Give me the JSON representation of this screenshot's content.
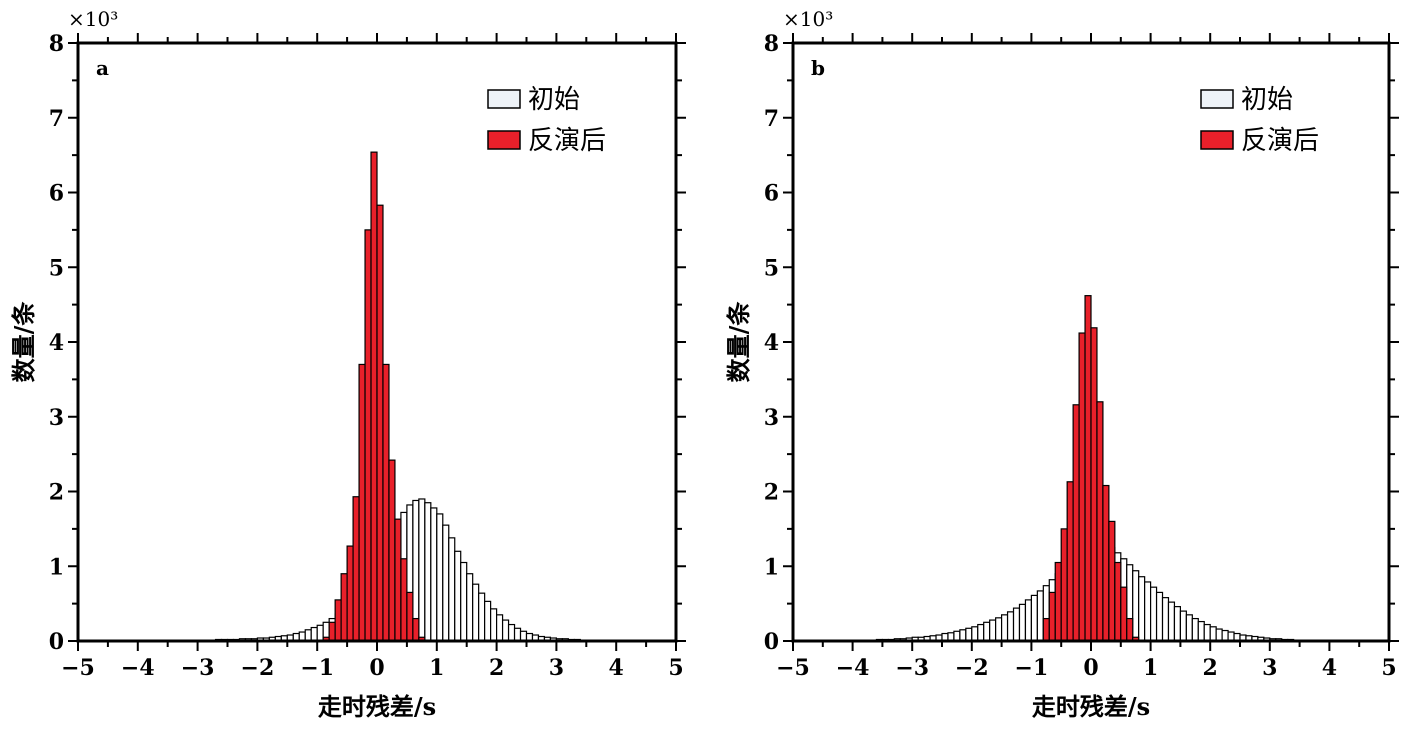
{
  "chart_data": [
    {
      "type": "bar",
      "panel_label": "a",
      "multiplier_label": "×10³",
      "xlabel": "走时残差/s",
      "ylabel": "数量/条",
      "xlim": [
        -5,
        5
      ],
      "ylim": [
        0,
        8
      ],
      "x_ticks": [
        "−5",
        "−4",
        "−3",
        "−2",
        "−1",
        "0",
        "1",
        "2",
        "3",
        "4",
        "5"
      ],
      "y_ticks": [
        "0",
        "1",
        "2",
        "3",
        "4",
        "5",
        "6",
        "7",
        "8"
      ],
      "bin_width": 0.1,
      "bin_start": -5,
      "legend_position": "top-right",
      "series": [
        {
          "name": "初始",
          "color": "#ffffff",
          "values": [
            0,
            0,
            0,
            0,
            0,
            0,
            0,
            0,
            0,
            0,
            0,
            0,
            0,
            0,
            0,
            0.01,
            0.01,
            0.01,
            0.01,
            0.01,
            0.01,
            0.01,
            0.01,
            0.02,
            0.02,
            0.02,
            0.02,
            0.03,
            0.03,
            0.03,
            0.04,
            0.04,
            0.05,
            0.06,
            0.07,
            0.08,
            0.1,
            0.12,
            0.15,
            0.18,
            0.21,
            0.25,
            0.3,
            0.36,
            0.43,
            0.52,
            0.62,
            0.74,
            0.86,
            1,
            1.15,
            1.3,
            1.45,
            1.6,
            1.72,
            1.82,
            1.88,
            1.9,
            1.85,
            1.78,
            1.7,
            1.55,
            1.38,
            1.2,
            1.05,
            0.9,
            0.76,
            0.64,
            0.53,
            0.43,
            0.35,
            0.28,
            0.22,
            0.17,
            0.13,
            0.1,
            0.08,
            0.06,
            0.05,
            0.04,
            0.03,
            0.03,
            0.02,
            0.02,
            0.01,
            0.01,
            0.01,
            0.01,
            0,
            0,
            0,
            0,
            0,
            0,
            0,
            0,
            0,
            0,
            0,
            0
          ]
        },
        {
          "name": "反演后",
          "color": "#e8202a",
          "values": [
            0,
            0,
            0,
            0,
            0,
            0,
            0,
            0,
            0,
            0,
            0,
            0,
            0,
            0,
            0,
            0,
            0,
            0,
            0,
            0,
            0,
            0,
            0,
            0,
            0,
            0,
            0,
            0,
            0,
            0,
            0,
            0,
            0,
            0,
            0,
            0,
            0,
            0,
            0,
            0,
            0,
            0.05,
            0.25,
            0.55,
            0.9,
            1.27,
            1.93,
            3.7,
            5.5,
            6.54,
            5.83,
            3.7,
            2.42,
            1.63,
            1.1,
            0.65,
            0.3,
            0.05,
            0,
            0,
            0,
            0,
            0,
            0,
            0,
            0,
            0,
            0,
            0,
            0,
            0,
            0,
            0,
            0,
            0,
            0,
            0,
            0,
            0,
            0,
            0,
            0,
            0,
            0,
            0,
            0,
            0,
            0,
            0,
            0,
            0,
            0,
            0,
            0,
            0,
            0,
            0,
            0,
            0,
            0
          ]
        }
      ]
    },
    {
      "type": "bar",
      "panel_label": "b",
      "multiplier_label": "×10³",
      "xlabel": "走时残差/s",
      "ylabel": "数量/条",
      "xlim": [
        -5,
        5
      ],
      "ylim": [
        0,
        8
      ],
      "x_ticks": [
        "−5",
        "−4",
        "−3",
        "−2",
        "−1",
        "0",
        "1",
        "2",
        "3",
        "4",
        "5"
      ],
      "y_ticks": [
        "0",
        "1",
        "2",
        "3",
        "4",
        "5",
        "6",
        "7",
        "8"
      ],
      "bin_width": 0.1,
      "bin_start": -5,
      "legend_position": "top-right",
      "series": [
        {
          "name": "初始",
          "color": "#ffffff",
          "values": [
            0,
            0,
            0,
            0,
            0,
            0,
            0,
            0,
            0,
            0.01,
            0.01,
            0.01,
            0.01,
            0.01,
            0.02,
            0.02,
            0.02,
            0.03,
            0.03,
            0.04,
            0.05,
            0.05,
            0.06,
            0.07,
            0.08,
            0.1,
            0.11,
            0.13,
            0.15,
            0.17,
            0.19,
            0.22,
            0.25,
            0.28,
            0.31,
            0.35,
            0.39,
            0.44,
            0.49,
            0.55,
            0.61,
            0.67,
            0.74,
            0.82,
            0.9,
            0.98,
            1.06,
            1.14,
            1.2,
            1.25,
            1.28,
            1.3,
            1.3,
            1.25,
            1.18,
            1.1,
            1.02,
            0.94,
            0.86,
            0.79,
            0.72,
            0.65,
            0.58,
            0.52,
            0.46,
            0.4,
            0.35,
            0.3,
            0.26,
            0.22,
            0.19,
            0.16,
            0.14,
            0.12,
            0.1,
            0.08,
            0.07,
            0.06,
            0.05,
            0.04,
            0.03,
            0.03,
            0.02,
            0.02,
            0.01,
            0.01,
            0.01,
            0.01,
            0,
            0,
            0,
            0,
            0,
            0,
            0,
            0,
            0,
            0,
            0,
            0
          ]
        },
        {
          "name": "反演后",
          "color": "#e8202a",
          "values": [
            0,
            0,
            0,
            0,
            0,
            0,
            0,
            0,
            0,
            0,
            0,
            0,
            0,
            0,
            0,
            0,
            0,
            0,
            0,
            0,
            0,
            0,
            0,
            0,
            0,
            0,
            0,
            0,
            0,
            0,
            0,
            0,
            0,
            0,
            0,
            0,
            0,
            0,
            0,
            0,
            0,
            0,
            0.3,
            0.65,
            1.05,
            1.5,
            2.13,
            3.16,
            4.12,
            4.62,
            4.19,
            3.2,
            2.08,
            1.6,
            1.05,
            0.72,
            0.3,
            0.05,
            0,
            0,
            0,
            0,
            0,
            0,
            0,
            0,
            0,
            0,
            0,
            0,
            0,
            0,
            0,
            0,
            0,
            0,
            0,
            0,
            0,
            0,
            0,
            0,
            0,
            0,
            0,
            0,
            0,
            0,
            0,
            0,
            0,
            0,
            0,
            0,
            0,
            0,
            0,
            0
          ]
        }
      ]
    }
  ]
}
